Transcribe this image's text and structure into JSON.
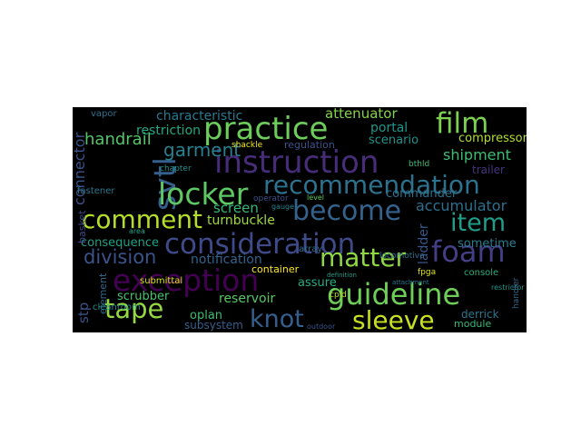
{
  "wordcloud": {
    "background": "#000000",
    "words": [
      {
        "text": "film",
        "color": "#7ad151"
      },
      {
        "text": "practice",
        "color": "#6ccd5a"
      },
      {
        "text": "instruction",
        "color": "#472c7a"
      },
      {
        "text": "svtl",
        "color": "#355f8d"
      },
      {
        "text": "locker",
        "color": "#5ec962"
      },
      {
        "text": "recommendation",
        "color": "#2c728e"
      },
      {
        "text": "become",
        "color": "#33638d"
      },
      {
        "text": "comment",
        "color": "#b5de2b"
      },
      {
        "text": "consideration",
        "color": "#3e4a89"
      },
      {
        "text": "foam",
        "color": "#433e85"
      },
      {
        "text": "item",
        "color": "#1f9e89"
      },
      {
        "text": "matter",
        "color": "#8fd744"
      },
      {
        "text": "exception",
        "color": "#440154"
      },
      {
        "text": "guideline",
        "color": "#6ece58"
      },
      {
        "text": "tape",
        "color": "#95d840"
      },
      {
        "text": "knot",
        "color": "#35608d"
      },
      {
        "text": "sleeve",
        "color": "#c8e020"
      },
      {
        "text": "garment",
        "color": "#26828e"
      },
      {
        "text": "handrail",
        "color": "#54c568"
      },
      {
        "text": "division",
        "color": "#3b528b"
      },
      {
        "text": "characteristic",
        "color": "#2a788e"
      },
      {
        "text": "attenuator",
        "color": "#84d44b"
      },
      {
        "text": "accumulator",
        "color": "#2d708e"
      },
      {
        "text": "shipment",
        "color": "#3fbc73"
      },
      {
        "text": "restriction",
        "color": "#22a884"
      },
      {
        "text": "portal",
        "color": "#1f968b"
      },
      {
        "text": "scenario",
        "color": "#20928c"
      },
      {
        "text": "compressor",
        "color": "#b5de2b"
      },
      {
        "text": "connector",
        "color": "#3b528b"
      },
      {
        "text": "screen",
        "color": "#35b779"
      },
      {
        "text": "turnbuckle",
        "color": "#a0da39"
      },
      {
        "text": "commander",
        "color": "#2c728e"
      },
      {
        "text": "notification",
        "color": "#33638d"
      },
      {
        "text": "consequence",
        "color": "#1fa187"
      },
      {
        "text": "ladder",
        "color": "#39568c"
      },
      {
        "text": "sometime",
        "color": "#287c8e"
      },
      {
        "text": "container",
        "color": "#fde725"
      },
      {
        "text": "reservoir",
        "color": "#56c667"
      },
      {
        "text": "assure",
        "color": "#25ac82"
      },
      {
        "text": "scrubber",
        "color": "#4ac16d"
      },
      {
        "text": "oplan",
        "color": "#3fbc73"
      },
      {
        "text": "subsystem",
        "color": "#355f8d"
      },
      {
        "text": "derrick",
        "color": "#2a768e"
      },
      {
        "text": "module",
        "color": "#35b779"
      },
      {
        "text": "stp",
        "color": "#3b528b"
      },
      {
        "text": "element",
        "color": "#31688e"
      },
      {
        "text": "regulation",
        "color": "#3b528b"
      },
      {
        "text": "trailer",
        "color": "#46337e"
      },
      {
        "text": "fastener",
        "color": "#2a788e"
      },
      {
        "text": "chapter",
        "color": "#21918c"
      },
      {
        "text": "shackle",
        "color": "#f4e61e"
      },
      {
        "text": "submittal",
        "color": "#d8e219"
      },
      {
        "text": "cleanroom",
        "color": "#238a8d"
      },
      {
        "text": "console",
        "color": "#29af7f"
      },
      {
        "text": "fpga",
        "color": "#e5e419"
      },
      {
        "text": "cpld",
        "color": "#b8de29"
      },
      {
        "text": "array",
        "color": "#2f6c8e"
      },
      {
        "text": "bthld",
        "color": "#3fbc73"
      },
      {
        "text": "vapor",
        "color": "#2c728e"
      },
      {
        "text": "basket",
        "color": "#3e4989"
      },
      {
        "text": "operator",
        "color": "#3b518b"
      },
      {
        "text": "locomotive",
        "color": "#2d708e"
      },
      {
        "text": "level",
        "color": "#5ec962"
      },
      {
        "text": "area",
        "color": "#20a386"
      },
      {
        "text": "outdoor",
        "color": "#3a548c"
      },
      {
        "text": "gauge",
        "color": "#26828e"
      },
      {
        "text": "definition",
        "color": "#1e9b8a"
      },
      {
        "text": "restrictor",
        "color": "#1f948c"
      },
      {
        "text": "attachment",
        "color": "#29798e"
      },
      {
        "text": "handler",
        "color": "#31688e"
      }
    ]
  }
}
